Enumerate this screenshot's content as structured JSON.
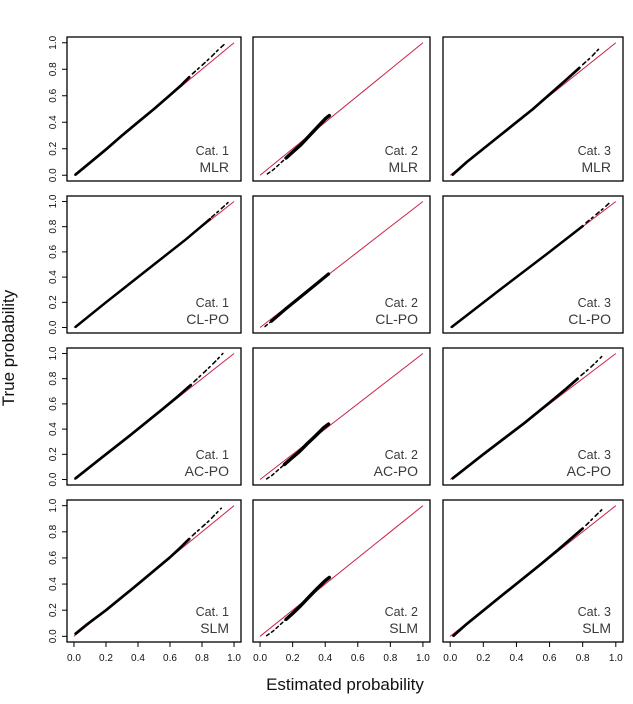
{
  "figure": {
    "xlabel": "Estimated probability",
    "ylabel": "True probability"
  },
  "chart_data": {
    "type": "scatter",
    "title": "",
    "xlabel": "Estimated probability",
    "ylabel": "True probability",
    "xlim": [
      0.0,
      1.0
    ],
    "ylim": [
      0.0,
      1.0
    ],
    "grid": false,
    "legend": "none",
    "xticks": [
      0.0,
      0.2,
      0.4,
      0.6,
      0.8,
      1.0
    ],
    "yticks": [
      0.0,
      0.2,
      0.4,
      0.6,
      0.8,
      1.0
    ],
    "tick_labels": [
      "0.0",
      "0.2",
      "0.4",
      "0.6",
      "0.8",
      "1.0"
    ],
    "rows": [
      "MLR",
      "CL-PO",
      "AC-PO",
      "SLM"
    ],
    "columns": [
      "Cat. 1",
      "Cat. 2",
      "Cat. 3"
    ],
    "colors": {
      "reference_line": "#cc2244",
      "points": "#000000",
      "panel_border": "#000000",
      "background": "#ffffff",
      "panel_label": "#3a3a3a"
    },
    "reference_line": {
      "from": [
        0.0,
        0.0
      ],
      "to": [
        1.0,
        1.0
      ]
    },
    "panels": [
      {
        "cat": "Cat. 1",
        "model": "MLR",
        "main_width": 2.7,
        "head": [],
        "main": [
          [
            0.01,
            0.005
          ],
          [
            0.1,
            0.095
          ],
          [
            0.2,
            0.195
          ],
          [
            0.3,
            0.3
          ],
          [
            0.4,
            0.4
          ],
          [
            0.5,
            0.5
          ],
          [
            0.6,
            0.605
          ],
          [
            0.67,
            0.68
          ],
          [
            0.72,
            0.74
          ]
        ],
        "tail": [
          [
            0.74,
            0.765
          ],
          [
            0.8,
            0.83
          ],
          [
            0.85,
            0.885
          ],
          [
            0.9,
            0.945
          ],
          [
            0.95,
            1.0
          ]
        ]
      },
      {
        "cat": "Cat. 2",
        "model": "MLR",
        "main_width": 3.5,
        "head": [
          [
            0.045,
            0.01
          ],
          [
            0.08,
            0.04
          ],
          [
            0.12,
            0.085
          ],
          [
            0.16,
            0.13
          ]
        ],
        "main": [
          [
            0.16,
            0.13
          ],
          [
            0.2,
            0.175
          ],
          [
            0.25,
            0.23
          ],
          [
            0.3,
            0.295
          ],
          [
            0.35,
            0.36
          ],
          [
            0.4,
            0.425
          ],
          [
            0.425,
            0.45
          ]
        ],
        "tail": []
      },
      {
        "cat": "Cat. 3",
        "model": "MLR",
        "main_width": 2.7,
        "head": [],
        "main": [
          [
            0.015,
            0.005
          ],
          [
            0.1,
            0.1
          ],
          [
            0.3,
            0.3
          ],
          [
            0.5,
            0.5
          ],
          [
            0.6,
            0.61
          ],
          [
            0.7,
            0.72
          ],
          [
            0.78,
            0.81
          ]
        ],
        "tail": [
          [
            0.8,
            0.835
          ],
          [
            0.85,
            0.89
          ],
          [
            0.88,
            0.93
          ],
          [
            0.91,
            0.97
          ]
        ]
      },
      {
        "cat": "Cat. 1",
        "model": "CL-PO",
        "main_width": 2.5,
        "head": [],
        "main": [
          [
            0.01,
            0.005
          ],
          [
            0.2,
            0.2
          ],
          [
            0.5,
            0.5
          ],
          [
            0.7,
            0.7
          ],
          [
            0.85,
            0.86
          ]
        ],
        "tail": [
          [
            0.86,
            0.875
          ],
          [
            0.9,
            0.92
          ],
          [
            0.94,
            0.965
          ],
          [
            0.97,
            1.0
          ]
        ]
      },
      {
        "cat": "Cat. 2",
        "model": "CL-PO",
        "main_width": 3.2,
        "head": [
          [
            0.03,
            0.008
          ],
          [
            0.07,
            0.05
          ]
        ],
        "main": [
          [
            0.07,
            0.05
          ],
          [
            0.15,
            0.14
          ],
          [
            0.25,
            0.245
          ],
          [
            0.35,
            0.35
          ],
          [
            0.42,
            0.425
          ]
        ],
        "tail": []
      },
      {
        "cat": "Cat. 3",
        "model": "CL-PO",
        "main_width": 2.5,
        "head": [],
        "main": [
          [
            0.01,
            0.005
          ],
          [
            0.3,
            0.3
          ],
          [
            0.6,
            0.6
          ],
          [
            0.8,
            0.805
          ]
        ],
        "tail": [
          [
            0.82,
            0.83
          ],
          [
            0.88,
            0.895
          ],
          [
            0.93,
            0.95
          ],
          [
            0.97,
            1.0
          ]
        ]
      },
      {
        "cat": "Cat. 1",
        "model": "AC-PO",
        "main_width": 2.7,
        "head": [],
        "main": [
          [
            0.01,
            0.01
          ],
          [
            0.15,
            0.15
          ],
          [
            0.35,
            0.35
          ],
          [
            0.55,
            0.555
          ],
          [
            0.65,
            0.66
          ],
          [
            0.73,
            0.75
          ]
        ],
        "tail": [
          [
            0.75,
            0.775
          ],
          [
            0.8,
            0.835
          ],
          [
            0.85,
            0.895
          ],
          [
            0.89,
            0.945
          ],
          [
            0.93,
            1.0
          ]
        ]
      },
      {
        "cat": "Cat. 2",
        "model": "AC-PO",
        "main_width": 3.5,
        "head": [
          [
            0.04,
            0.005
          ],
          [
            0.075,
            0.035
          ],
          [
            0.11,
            0.075
          ],
          [
            0.15,
            0.12
          ]
        ],
        "main": [
          [
            0.15,
            0.12
          ],
          [
            0.19,
            0.165
          ],
          [
            0.24,
            0.22
          ],
          [
            0.29,
            0.285
          ],
          [
            0.34,
            0.345
          ],
          [
            0.39,
            0.41
          ],
          [
            0.42,
            0.44
          ]
        ],
        "tail": []
      },
      {
        "cat": "Cat. 3",
        "model": "AC-PO",
        "main_width": 2.7,
        "head": [],
        "main": [
          [
            0.015,
            0.01
          ],
          [
            0.2,
            0.2
          ],
          [
            0.45,
            0.45
          ],
          [
            0.6,
            0.61
          ],
          [
            0.7,
            0.72
          ],
          [
            0.77,
            0.8
          ]
        ],
        "tail": [
          [
            0.79,
            0.825
          ],
          [
            0.84,
            0.88
          ],
          [
            0.88,
            0.93
          ],
          [
            0.915,
            0.975
          ]
        ]
      },
      {
        "cat": "Cat. 1",
        "model": "SLM",
        "main_width": 2.7,
        "head": [],
        "main": [
          [
            0.01,
            0.02
          ],
          [
            0.08,
            0.09
          ],
          [
            0.2,
            0.2
          ],
          [
            0.4,
            0.4
          ],
          [
            0.6,
            0.605
          ],
          [
            0.67,
            0.685
          ],
          [
            0.72,
            0.745
          ]
        ],
        "tail": [
          [
            0.74,
            0.77
          ],
          [
            0.79,
            0.825
          ],
          [
            0.84,
            0.88
          ],
          [
            0.88,
            0.93
          ],
          [
            0.92,
            0.98
          ]
        ]
      },
      {
        "cat": "Cat. 2",
        "model": "SLM",
        "main_width": 3.5,
        "head": [
          [
            0.04,
            0.005
          ],
          [
            0.08,
            0.04
          ],
          [
            0.12,
            0.085
          ],
          [
            0.16,
            0.13
          ]
        ],
        "main": [
          [
            0.16,
            0.13
          ],
          [
            0.2,
            0.175
          ],
          [
            0.25,
            0.235
          ],
          [
            0.3,
            0.3
          ],
          [
            0.35,
            0.365
          ],
          [
            0.4,
            0.425
          ],
          [
            0.425,
            0.45
          ]
        ],
        "tail": []
      },
      {
        "cat": "Cat. 3",
        "model": "SLM",
        "main_width": 2.7,
        "head": [],
        "main": [
          [
            0.02,
            0.005
          ],
          [
            0.1,
            0.095
          ],
          [
            0.3,
            0.3
          ],
          [
            0.55,
            0.555
          ],
          [
            0.65,
            0.66
          ],
          [
            0.75,
            0.77
          ],
          [
            0.8,
            0.825
          ]
        ],
        "tail": [
          [
            0.82,
            0.85
          ],
          [
            0.86,
            0.9
          ],
          [
            0.9,
            0.95
          ],
          [
            0.93,
            0.985
          ]
        ]
      }
    ]
  }
}
